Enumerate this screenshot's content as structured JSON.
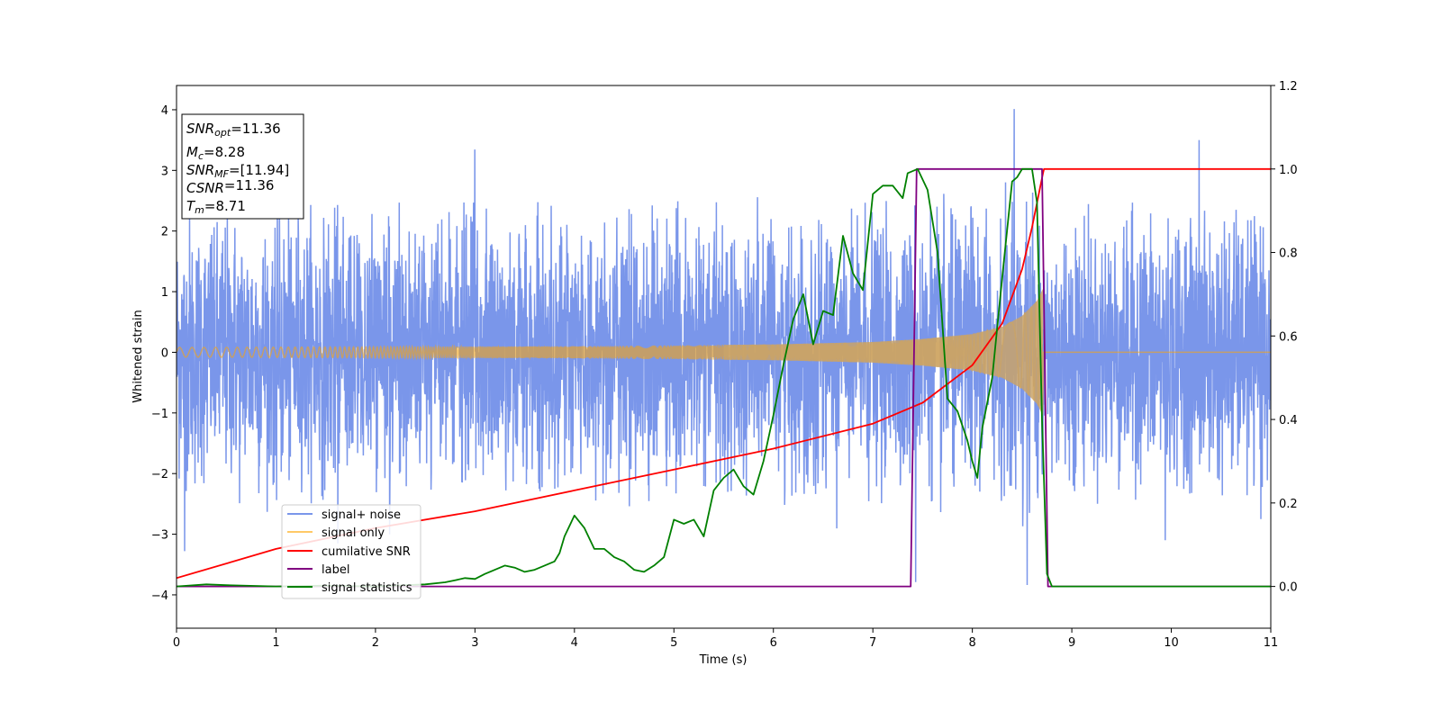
{
  "chart_data": {
    "type": "line",
    "xlabel": "Time (s)",
    "ylabel_left": "Whitened strain",
    "ylabel_right": "",
    "xlim": [
      0,
      11
    ],
    "ylim_left": [
      -4.55,
      4.4
    ],
    "ylim_right": [
      -0.1,
      1.2
    ],
    "x_ticks": [
      0,
      1,
      2,
      3,
      4,
      5,
      6,
      7,
      8,
      9,
      10,
      11
    ],
    "y_ticks_left": [
      -4,
      -3,
      -2,
      -1,
      0,
      1,
      2,
      3,
      4
    ],
    "y_ticks_right": [
      0.0,
      0.2,
      0.4,
      0.6,
      0.8,
      1.0,
      1.2
    ],
    "grid": false,
    "legend_position": "lower-left",
    "annotation_box": {
      "position": "top-left",
      "lines": [
        {
          "sym": "SNR",
          "sub": "opt",
          "val": "=11.36"
        },
        {
          "sym": "M",
          "sub": "c",
          "val": "=8.28"
        },
        {
          "sym": "SNR",
          "sub": "MF",
          "val": "=[11.94]"
        },
        {
          "sym": "CSNR",
          "sub": "",
          "val": "=11.36"
        },
        {
          "sym": "T",
          "sub": "m",
          "val": "=8.71"
        }
      ]
    },
    "series": [
      {
        "name": "signal+ noise",
        "color": "#4169e1",
        "axis": "left",
        "kind": "noise",
        "typical_range": [
          -2.5,
          2.5
        ],
        "peaks": [
          [
            8.42,
            4.0
          ],
          [
            8.55,
            -4.15
          ],
          [
            10.28,
            3.5
          ],
          [
            3.0,
            3.25
          ],
          [
            0.08,
            -3.2
          ],
          [
            7.43,
            -3.95
          ],
          [
            9.94,
            -3.1
          ]
        ]
      },
      {
        "name": "signal only",
        "color": "#ffa500",
        "axis": "left",
        "kind": "chirp",
        "envelope": [
          [
            0,
            0.08
          ],
          [
            4,
            0.1
          ],
          [
            6,
            0.13
          ],
          [
            7,
            0.17
          ],
          [
            7.5,
            0.22
          ],
          [
            8,
            0.3
          ],
          [
            8.3,
            0.42
          ],
          [
            8.5,
            0.6
          ],
          [
            8.65,
            0.85
          ],
          [
            8.71,
            1.05
          ]
        ],
        "end": 8.71
      },
      {
        "name": "cumilative SNR",
        "color": "#ff0000",
        "axis": "right",
        "x": [
          0,
          1,
          2,
          3,
          4,
          5,
          6,
          7,
          7.5,
          8,
          8.3,
          8.5,
          8.6,
          8.71,
          8.72,
          11
        ],
        "y": [
          0.02,
          0.09,
          0.14,
          0.18,
          0.23,
          0.28,
          0.33,
          0.39,
          0.44,
          0.53,
          0.63,
          0.76,
          0.86,
          0.99,
          1.0,
          1.0
        ]
      },
      {
        "name": "label",
        "color": "#800080",
        "axis": "right",
        "x": [
          0,
          7.38,
          7.44,
          8.7,
          8.76,
          11
        ],
        "y": [
          0,
          0,
          1,
          1,
          0,
          0
        ]
      },
      {
        "name": "signal statistics",
        "color": "#008000",
        "axis": "right",
        "x": [
          0,
          0.3,
          0.5,
          1,
          1.5,
          2,
          2.5,
          2.7,
          2.8,
          2.9,
          3.0,
          3.1,
          3.2,
          3.3,
          3.4,
          3.5,
          3.6,
          3.7,
          3.8,
          3.85,
          3.9,
          4.0,
          4.1,
          4.2,
          4.3,
          4.4,
          4.5,
          4.6,
          4.7,
          4.8,
          4.9,
          5.0,
          5.1,
          5.2,
          5.3,
          5.4,
          5.5,
          5.6,
          5.7,
          5.8,
          5.9,
          6.0,
          6.1,
          6.2,
          6.3,
          6.4,
          6.5,
          6.6,
          6.7,
          6.8,
          6.9,
          7.0,
          7.1,
          7.2,
          7.3,
          7.35,
          7.45,
          7.55,
          7.65,
          7.75,
          7.85,
          7.95,
          8.0,
          8.05,
          8.1,
          8.2,
          8.3,
          8.4,
          8.45,
          8.5,
          8.6,
          8.65,
          8.7,
          8.75,
          8.8,
          11
        ],
        "y": [
          0.0,
          0.005,
          0.003,
          0.0,
          0.002,
          0.0,
          0.005,
          0.01,
          0.015,
          0.02,
          0.018,
          0.03,
          0.04,
          0.05,
          0.045,
          0.035,
          0.04,
          0.05,
          0.06,
          0.08,
          0.12,
          0.17,
          0.14,
          0.09,
          0.09,
          0.07,
          0.06,
          0.04,
          0.035,
          0.05,
          0.07,
          0.16,
          0.15,
          0.16,
          0.12,
          0.23,
          0.26,
          0.28,
          0.24,
          0.22,
          0.3,
          0.41,
          0.53,
          0.64,
          0.7,
          0.58,
          0.66,
          0.65,
          0.84,
          0.75,
          0.71,
          0.94,
          0.96,
          0.96,
          0.93,
          0.99,
          1.0,
          0.95,
          0.8,
          0.45,
          0.42,
          0.35,
          0.3,
          0.26,
          0.38,
          0.5,
          0.74,
          0.97,
          0.98,
          1.0,
          1.0,
          0.92,
          0.4,
          0.03,
          0.0,
          0.0
        ]
      }
    ]
  }
}
